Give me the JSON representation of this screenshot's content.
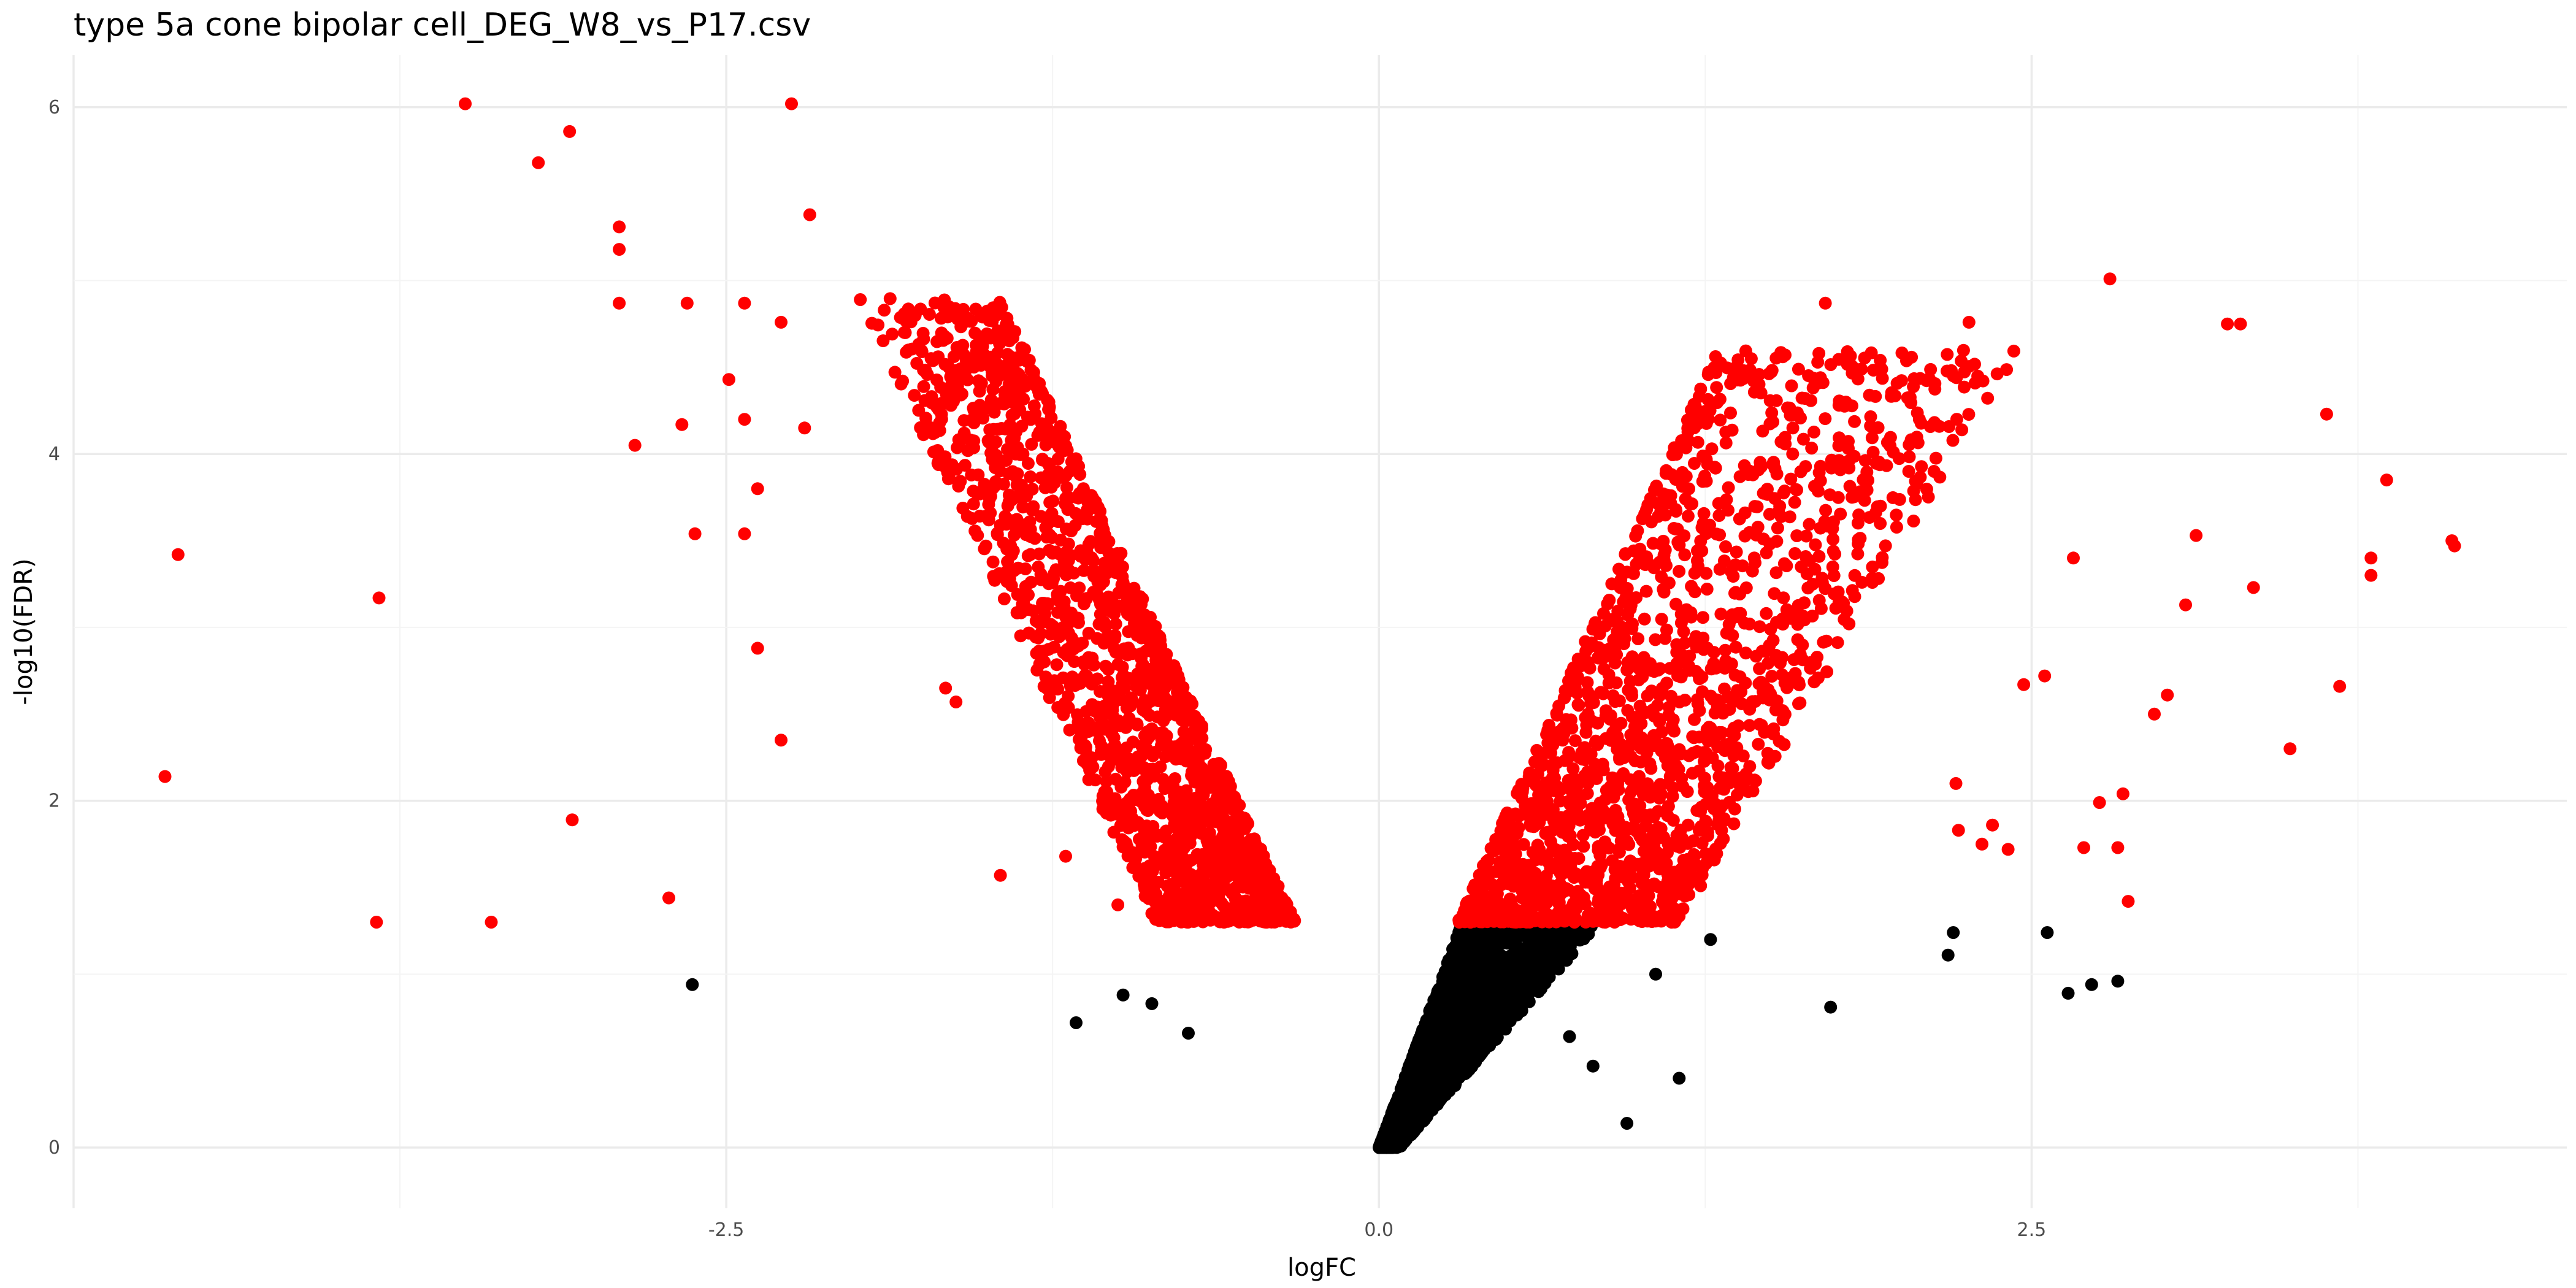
{
  "chart_data": {
    "type": "scatter",
    "title": "type 5a cone bipolar cell_DEG_W8_vs_P17.csv",
    "xlabel": "logFC",
    "ylabel": "-log10(FDR)",
    "xlim": [
      -5.0,
      4.55
    ],
    "ylim": [
      -0.35,
      6.3
    ],
    "x_ticks": [
      -2.5,
      0.0,
      2.5
    ],
    "x_tick_labels": [
      "-2.5",
      "0.0",
      "2.5"
    ],
    "y_ticks": [
      0,
      2,
      4,
      6
    ],
    "y_tick_labels": [
      "0",
      "2",
      "4",
      "6"
    ],
    "grid": true,
    "legend": "none",
    "significance_threshold_y": 1.3,
    "colors": {
      "significant": "#ff0000",
      "not_significant": "#000000"
    },
    "series": [
      {
        "color": "#ff0000",
        "points": [
          [
            -4.6,
            3.42
          ],
          [
            -4.65,
            2.14
          ],
          [
            -3.83,
            3.17
          ],
          [
            -3.84,
            1.3
          ],
          [
            -3.5,
            6.02
          ],
          [
            -3.22,
            5.68
          ],
          [
            -3.1,
            5.86
          ],
          [
            -3.4,
            1.3
          ],
          [
            -3.09,
            1.89
          ],
          [
            -2.91,
            5.31
          ],
          [
            -2.91,
            5.18
          ],
          [
            -2.91,
            4.87
          ],
          [
            -2.85,
            4.05
          ],
          [
            -2.65,
            4.87
          ],
          [
            -2.67,
            4.17
          ],
          [
            -2.62,
            3.54
          ],
          [
            -2.72,
            1.44
          ],
          [
            -2.25,
            6.02
          ],
          [
            -2.18,
            5.38
          ],
          [
            -2.43,
            4.87
          ],
          [
            -2.49,
            4.43
          ],
          [
            -2.43,
            4.2
          ],
          [
            -2.43,
            3.54
          ],
          [
            -2.38,
            3.8
          ],
          [
            -2.38,
            2.88
          ],
          [
            -2.29,
            2.35
          ],
          [
            -2.29,
            4.76
          ],
          [
            -2.2,
            4.15
          ],
          [
            -1.45,
            1.57
          ],
          [
            -1.2,
            1.68
          ],
          [
            -1.66,
            2.65
          ],
          [
            -1.62,
            2.57
          ],
          [
            -0.87,
            1.35
          ],
          [
            -1.0,
            1.4
          ],
          [
            1.02,
            1.9
          ],
          [
            1.15,
            1.52
          ],
          [
            1.71,
            4.87
          ],
          [
            2.07,
            4.2
          ],
          [
            2.26,
            4.76
          ],
          [
            2.8,
            5.01
          ],
          [
            3.25,
            4.75
          ],
          [
            3.3,
            4.75
          ],
          [
            3.63,
            4.23
          ],
          [
            3.86,
            3.85
          ],
          [
            3.8,
            3.4
          ],
          [
            3.8,
            3.3
          ],
          [
            4.11,
            3.5
          ],
          [
            4.12,
            3.47
          ],
          [
            3.68,
            2.66
          ],
          [
            3.49,
            2.3
          ],
          [
            3.35,
            3.23
          ],
          [
            3.13,
            3.53
          ],
          [
            3.09,
            3.13
          ],
          [
            3.02,
            2.61
          ],
          [
            2.85,
            2.04
          ],
          [
            2.97,
            2.5
          ],
          [
            2.87,
            1.42
          ],
          [
            2.66,
            3.4
          ],
          [
            2.7,
            1.73
          ],
          [
            2.76,
            1.99
          ],
          [
            2.83,
            1.73
          ],
          [
            2.55,
            2.72
          ],
          [
            2.47,
            2.67
          ],
          [
            2.41,
            1.72
          ],
          [
            2.35,
            1.86
          ],
          [
            2.31,
            1.75
          ],
          [
            2.22,
            1.83
          ],
          [
            2.21,
            2.1
          ]
        ]
      },
      {
        "color": "#000000",
        "points": [
          [
            -2.63,
            0.94
          ],
          [
            -1.16,
            0.72
          ],
          [
            -0.87,
            0.83
          ],
          [
            0.95,
            0.14
          ],
          [
            1.15,
            0.4
          ],
          [
            1.73,
            0.81
          ],
          [
            2.18,
            1.11
          ],
          [
            2.2,
            1.24
          ],
          [
            2.56,
            1.24
          ],
          [
            2.64,
            0.89
          ],
          [
            2.73,
            0.94
          ],
          [
            2.83,
            0.96
          ],
          [
            0.73,
            0.64
          ],
          [
            0.82,
            0.47
          ],
          [
            -0.73,
            0.66
          ],
          [
            -0.98,
            0.88
          ],
          [
            1.06,
            1.0
          ],
          [
            1.27,
            1.2
          ]
        ]
      }
    ],
    "point_clouds": [
      {
        "color": "#ff0000",
        "description": "left upregulated-in-P17 arm",
        "count": 1700,
        "y_range": [
          1.3,
          4.9
        ],
        "x_inner_at_y": [
          [
            1.3,
            -0.32
          ],
          [
            4.9,
            -1.45
          ]
        ],
        "x_outer_at_y": [
          [
            1.3,
            -0.85
          ],
          [
            4.9,
            -2.0
          ]
        ]
      },
      {
        "color": "#ff0000",
        "description": "right arm",
        "count": 1700,
        "y_range": [
          1.3,
          4.6
        ],
        "x_inner_at_y": [
          [
            1.3,
            0.3
          ],
          [
            4.6,
            1.3
          ]
        ],
        "x_outer_at_y": [
          [
            1.3,
            1.15
          ],
          [
            4.6,
            2.45
          ]
        ]
      },
      {
        "color": "#000000",
        "description": "non-significant V base",
        "count": 2200,
        "y_range": [
          0.0,
          1.3
        ],
        "x_inner_at_y": [
          [
            0.0,
            0.0
          ],
          [
            1.3,
            0.32
          ]
        ],
        "x_outer_at_y": [
          [
            0.0,
            0.08
          ],
          [
            1.3,
            0.85
          ]
        ]
      }
    ]
  }
}
